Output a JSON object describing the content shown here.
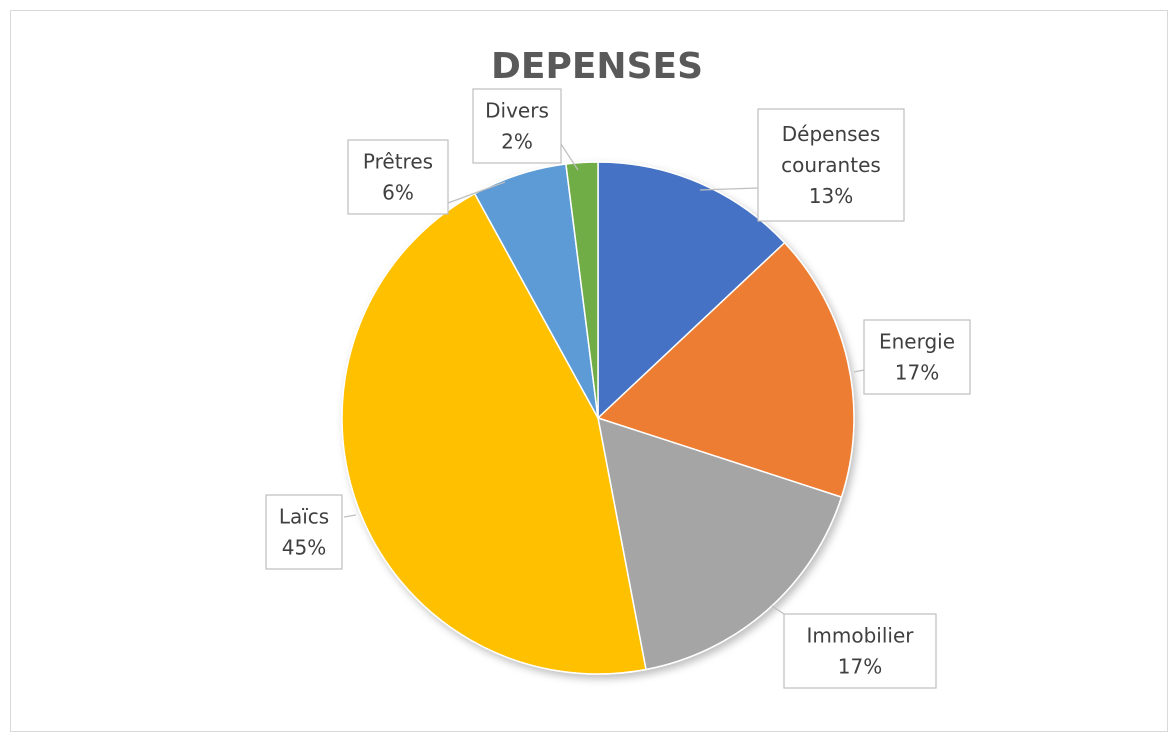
{
  "chart_data": {
    "type": "pie",
    "title": "DEPENSES",
    "slices": [
      {
        "name": "Dépenses courantes",
        "name_lines": [
          "Dépenses",
          "courantes"
        ],
        "value": 13,
        "label": "13%",
        "color": "#4472C4"
      },
      {
        "name": "Energie",
        "name_lines": [
          "Energie"
        ],
        "value": 17,
        "label": "17%",
        "color": "#ED7D31"
      },
      {
        "name": "Immobilier",
        "name_lines": [
          "Immobilier"
        ],
        "value": 17,
        "label": "17%",
        "color": "#A5A5A5"
      },
      {
        "name": "Laïcs",
        "name_lines": [
          "Laïcs"
        ],
        "value": 45,
        "label": "45%",
        "color": "#FFC000"
      },
      {
        "name": "Prêtres",
        "name_lines": [
          "Prêtres"
        ],
        "value": 6,
        "label": "6%",
        "color": "#5B9BD5"
      },
      {
        "name": "Divers",
        "name_lines": [
          "Divers"
        ],
        "value": 2,
        "label": "2%",
        "color": "#70AD47"
      }
    ],
    "start_angle": "12 o'clock",
    "direction": "clockwise",
    "legend": "none",
    "data_labels": "callout"
  }
}
